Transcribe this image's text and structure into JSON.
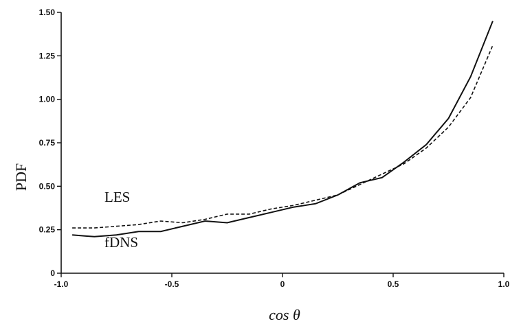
{
  "chart_data": {
    "type": "line",
    "xlabel": "cos θ",
    "ylabel": "PDF",
    "xlim": [
      -1.0,
      1.0
    ],
    "ylim": [
      0,
      1.5
    ],
    "grid": false,
    "x_ticks": [
      {
        "value": -1.0,
        "label": "-1.0"
      },
      {
        "value": -0.5,
        "label": "-0.5"
      },
      {
        "value": 0,
        "label": "0"
      },
      {
        "value": 0.5,
        "label": "0.5"
      },
      {
        "value": 1.0,
        "label": "1.0"
      }
    ],
    "y_ticks": [
      {
        "value": 0,
        "label": "0"
      },
      {
        "value": 0.25,
        "label": "0.25"
      },
      {
        "value": 0.5,
        "label": "0.50"
      },
      {
        "value": 0.75,
        "label": "0.75"
      },
      {
        "value": 1.0,
        "label": "1.00"
      },
      {
        "value": 1.25,
        "label": "1.25"
      },
      {
        "value": 1.5,
        "label": "1.50"
      }
    ],
    "series": [
      {
        "name": "LES",
        "style": "dashed",
        "color": "#111111",
        "x": [
          -0.95,
          -0.85,
          -0.75,
          -0.65,
          -0.55,
          -0.45,
          -0.35,
          -0.25,
          -0.15,
          -0.05,
          0.05,
          0.15,
          0.25,
          0.35,
          0.45,
          0.55,
          0.65,
          0.75,
          0.85,
          0.95
        ],
        "y": [
          0.26,
          0.26,
          0.27,
          0.28,
          0.3,
          0.29,
          0.31,
          0.34,
          0.34,
          0.37,
          0.39,
          0.42,
          0.45,
          0.51,
          0.57,
          0.63,
          0.72,
          0.84,
          1.01,
          1.31
        ]
      },
      {
        "name": "fDNS",
        "style": "solid",
        "color": "#111111",
        "x": [
          -0.95,
          -0.85,
          -0.75,
          -0.65,
          -0.55,
          -0.45,
          -0.35,
          -0.25,
          -0.15,
          -0.05,
          0.05,
          0.15,
          0.25,
          0.35,
          0.45,
          0.55,
          0.65,
          0.75,
          0.85,
          0.95
        ],
        "y": [
          0.22,
          0.21,
          0.22,
          0.24,
          0.24,
          0.27,
          0.3,
          0.29,
          0.32,
          0.35,
          0.38,
          0.4,
          0.45,
          0.52,
          0.55,
          0.64,
          0.74,
          0.89,
          1.13,
          1.45
        ]
      }
    ]
  }
}
